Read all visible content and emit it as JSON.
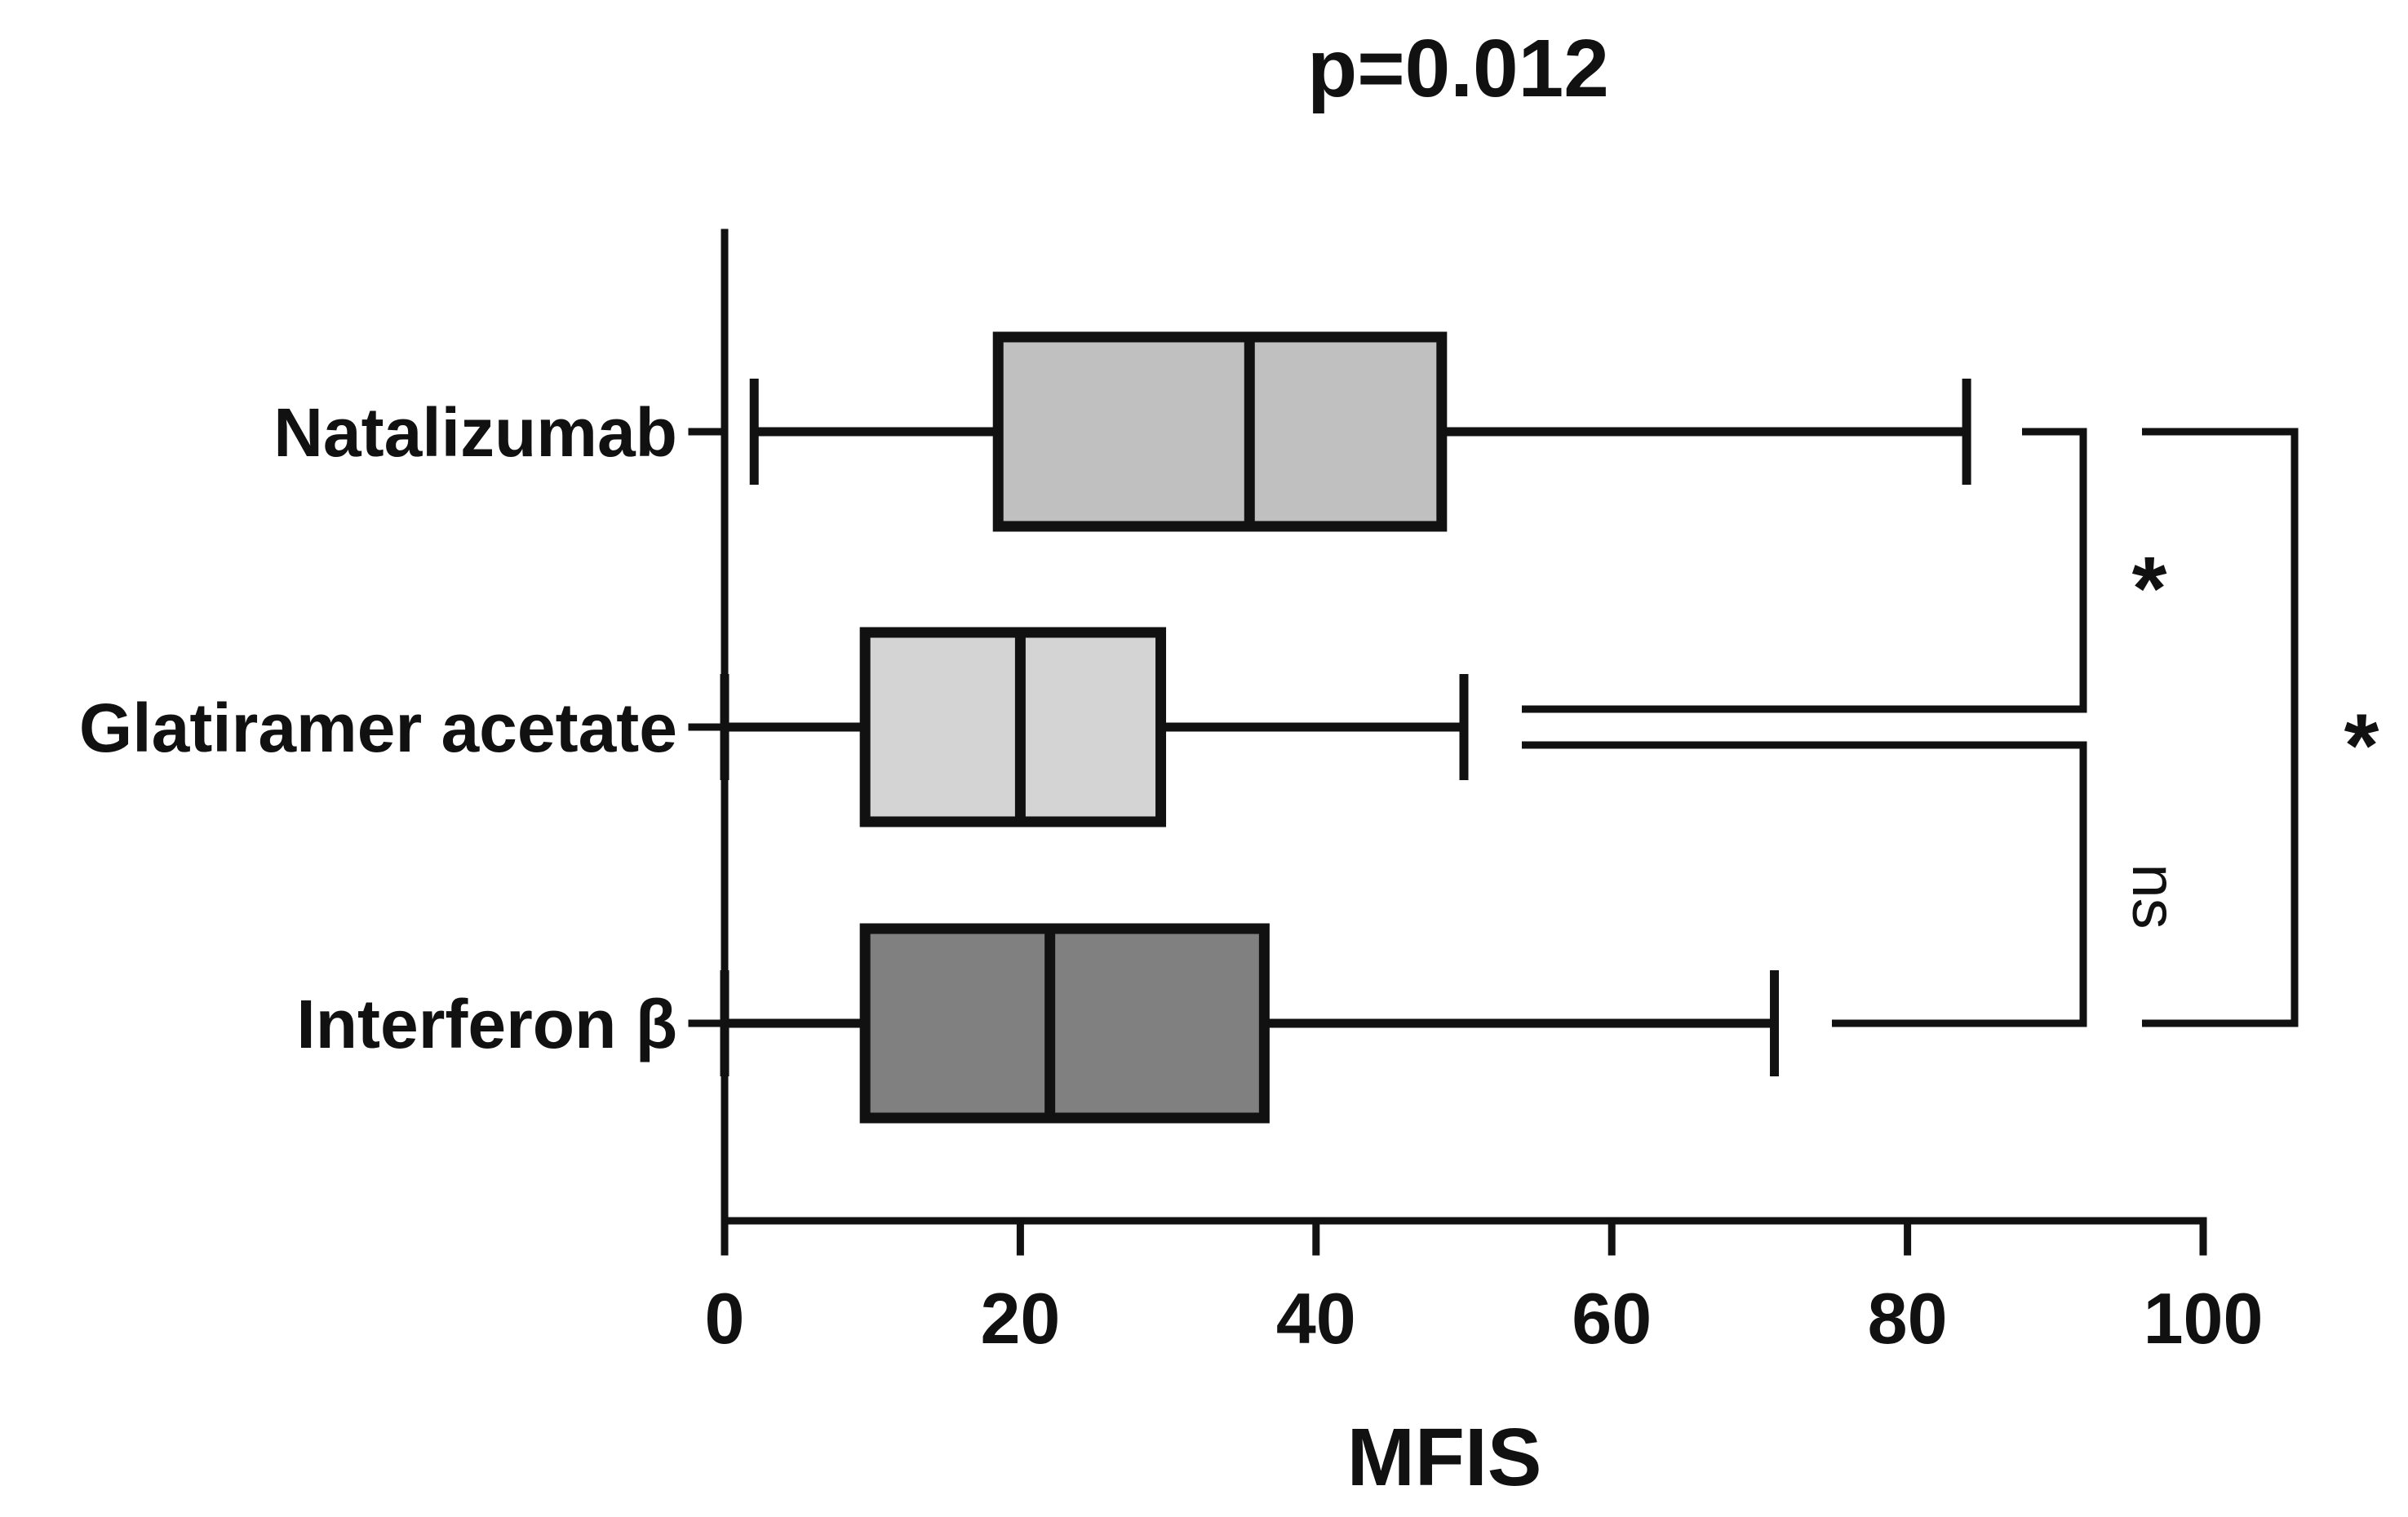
{
  "chart_data": {
    "type": "boxplot",
    "orientation": "horizontal",
    "title": "p=0.012",
    "xlabel": "MFIS",
    "ylabel": "",
    "xlim": [
      0,
      100
    ],
    "xticks": [
      0,
      20,
      40,
      60,
      80,
      100
    ],
    "grid": false,
    "categories": [
      "Natalizumab",
      "Glatiramer acetate",
      "Interferon β"
    ],
    "boxes": [
      {
        "label": "Natalizumab",
        "min": 2,
        "q1": 18.5,
        "median": 35.5,
        "q3": 48.5,
        "max": 84,
        "color": "#c0c0c0"
      },
      {
        "label": "Glatiramer acetate",
        "min": 0,
        "q1": 9.5,
        "median": 20,
        "q3": 29.5,
        "max": 50,
        "color": "#d4d4d4"
      },
      {
        "label": "Interferon β",
        "min": 0,
        "q1": 9.5,
        "median": 22,
        "q3": 36.5,
        "max": 71,
        "color": "#808080"
      }
    ],
    "comparisons": [
      {
        "groups": [
          "Natalizumab",
          "Glatiramer acetate"
        ],
        "label": "*"
      },
      {
        "groups": [
          "Glatiramer acetate",
          "Interferon β"
        ],
        "label": "ns"
      },
      {
        "groups": [
          "Natalizumab",
          "Interferon β"
        ],
        "label": "*"
      }
    ]
  }
}
